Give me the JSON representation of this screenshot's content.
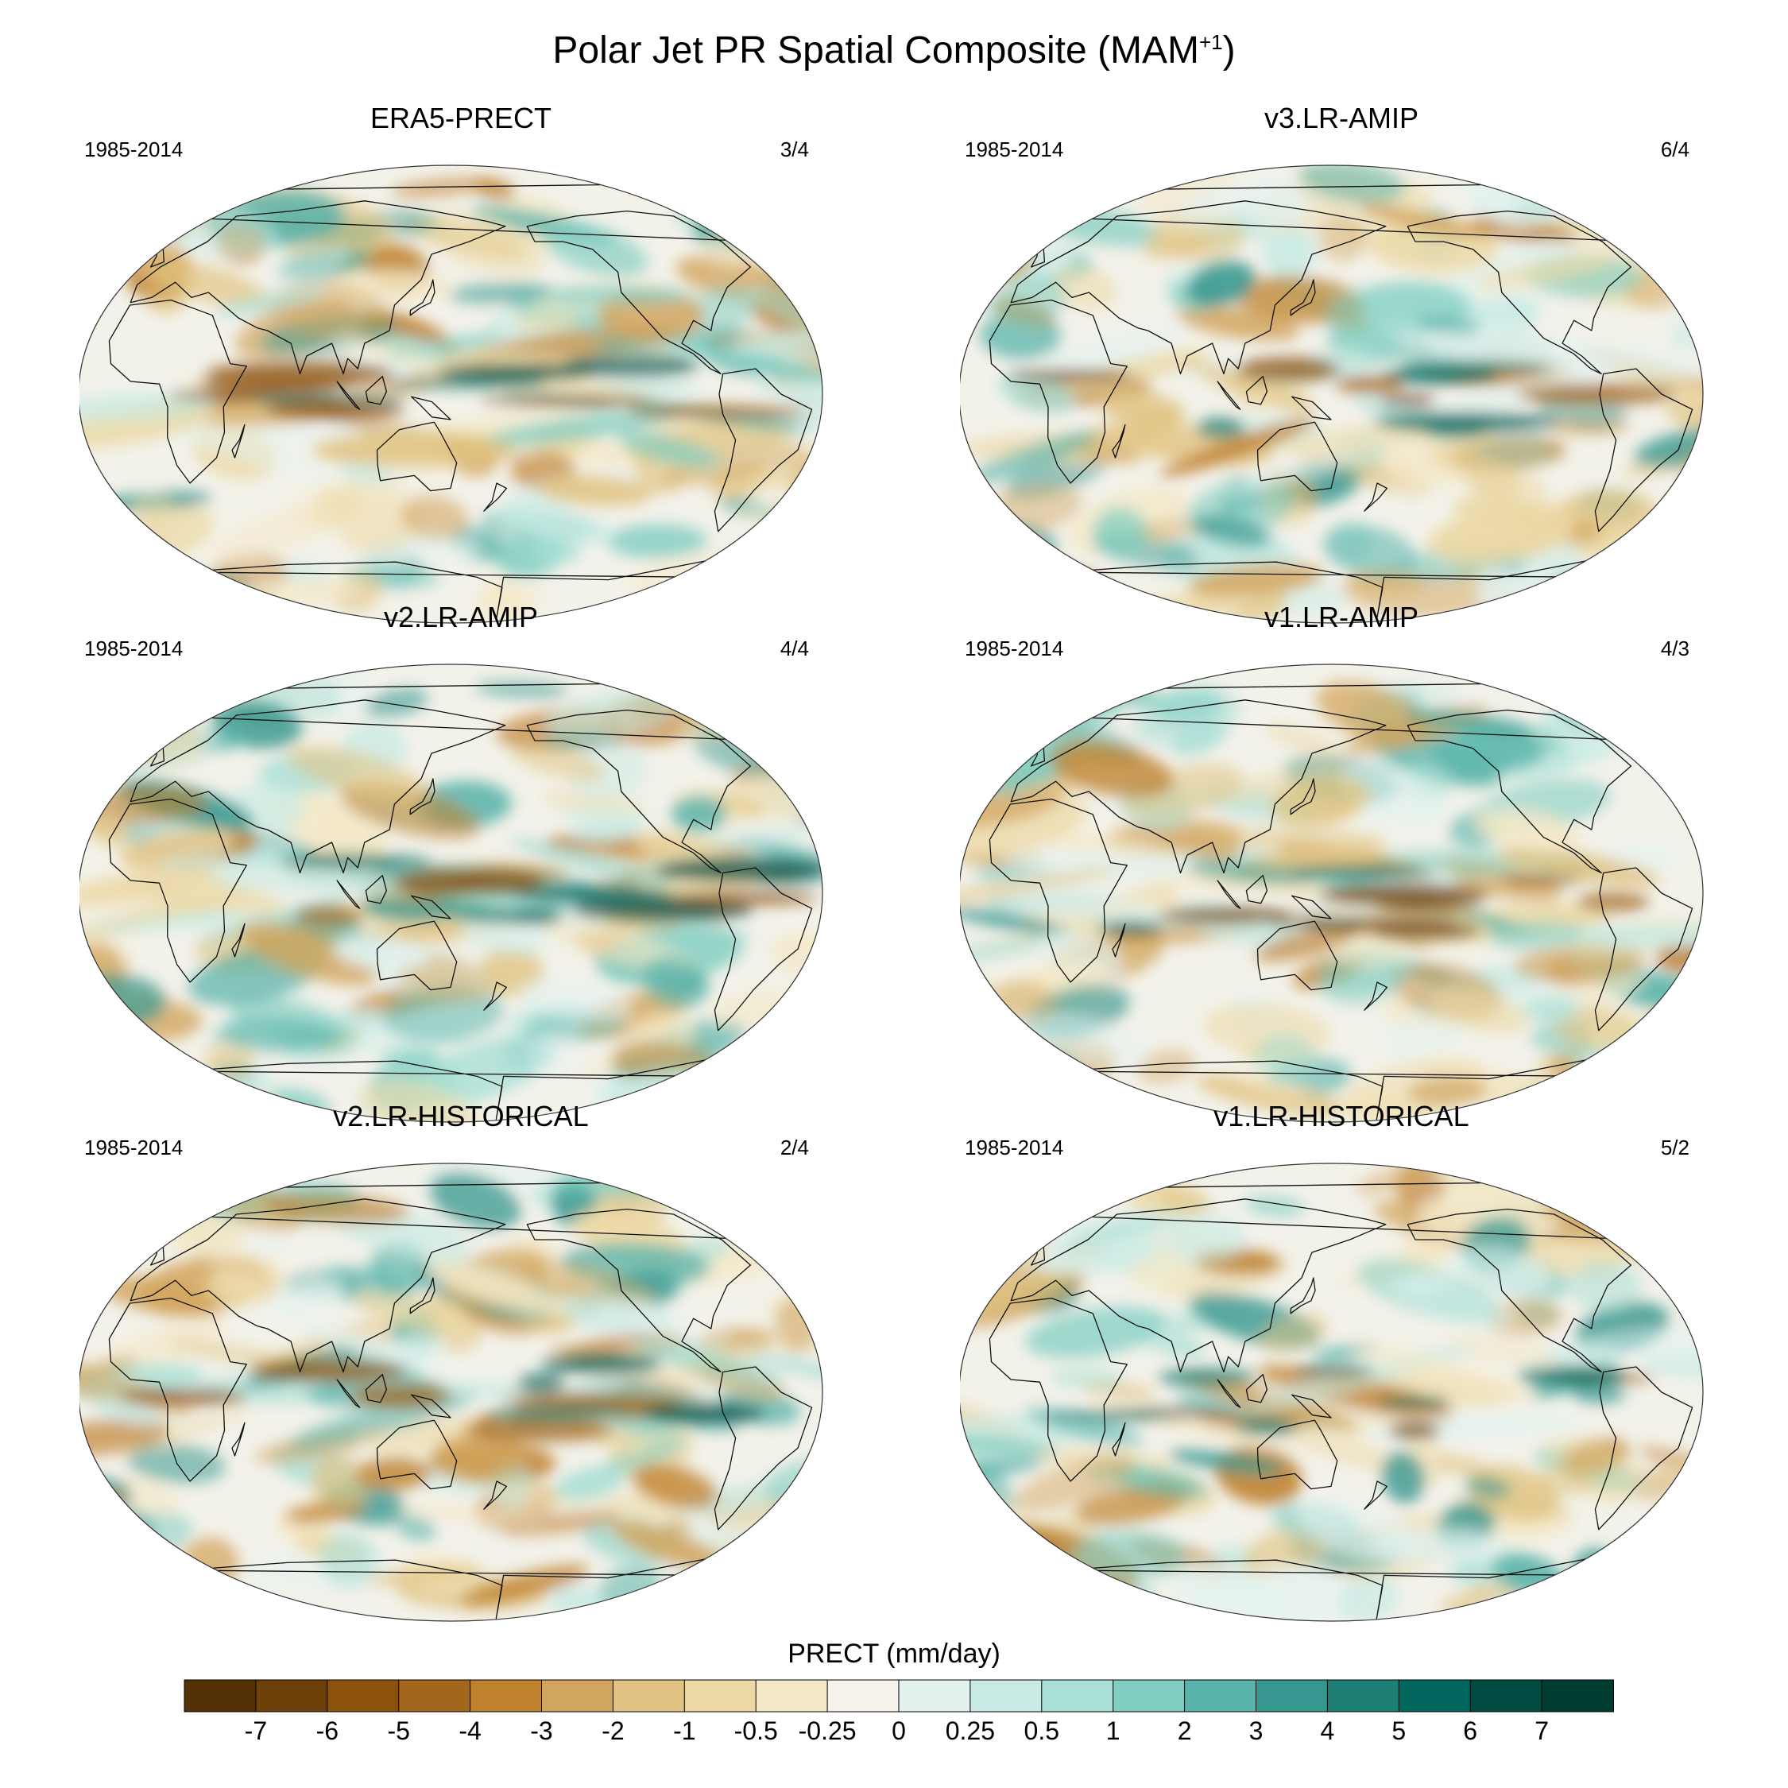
{
  "figure": {
    "title": "Polar Jet PR Spatial Composite (MAM",
    "title_sup": "+1",
    "title_close": ")"
  },
  "panels": [
    {
      "title": "ERA5-PRECT",
      "period": "1985-2014",
      "ratio": "3/4",
      "seed": 11
    },
    {
      "title": "v3.LR-AMIP",
      "period": "1985-2014",
      "ratio": "6/4",
      "seed": 23
    },
    {
      "title": "v2.LR-AMIP",
      "period": "1985-2014",
      "ratio": "4/4",
      "seed": 37
    },
    {
      "title": "v1.LR-AMIP",
      "period": "1985-2014",
      "ratio": "4/3",
      "seed": 41
    },
    {
      "title": "v2.LR-HISTORICAL",
      "period": "1985-2014",
      "ratio": "2/4",
      "seed": 53
    },
    {
      "title": "v1.LR-HISTORICAL",
      "period": "1985-2014",
      "ratio": "5/2",
      "seed": 67
    }
  ],
  "chart_data": {
    "type": "heatmap",
    "title": "Polar Jet PR Spatial Composite (MAM+1)",
    "projection": "robinson-like, Pacific-centered",
    "variable": "PRECT",
    "units": "mm/day",
    "colorbar": {
      "label": "PRECT (mm/day)",
      "levels": [
        "-7",
        "-6",
        "-5",
        "-4",
        "-3",
        "-2",
        "-1",
        "-0.5",
        "-0.25",
        "0",
        "0.25",
        "0.5",
        "1",
        "2",
        "3",
        "4",
        "5",
        "6",
        "7"
      ],
      "colors": [
        "#543005",
        "#6d3f09",
        "#8c510a",
        "#a2671c",
        "#bf812d",
        "#d2a55e",
        "#e1c483",
        "#ecd9a6",
        "#f4e8c6",
        "#f5f3ec",
        "#e3f2ef",
        "#c7eae4",
        "#a9dfd6",
        "#80cdc1",
        "#5ab4ab",
        "#35978f",
        "#1d7f76",
        "#01665e",
        "#014a42",
        "#003c30"
      ]
    }
  }
}
